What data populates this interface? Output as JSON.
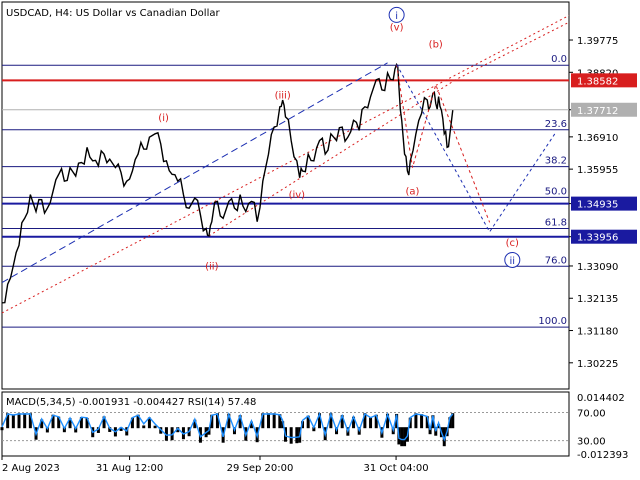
{
  "chart_data": {
    "type": "line",
    "title": "USDCAD, H4:  US Dollar vs Canadian Dollar",
    "price_axis": {
      "ylim": [
        1.2945,
        1.409
      ],
      "ticks": [
        "1.39775",
        "1.38820",
        "1.37712",
        "1.36910",
        "1.35955",
        "1.34935",
        "1.33956",
        "1.33090",
        "1.32135",
        "1.31180",
        "1.30225"
      ],
      "tick_values": [
        1.39775,
        1.3882,
        1.37712,
        1.3691,
        1.35955,
        1.34935,
        1.33956,
        1.3309,
        1.32135,
        1.3118,
        1.30225
      ]
    },
    "time_axis": {
      "ticks": [
        "2 Aug 2023",
        "31 Aug 12:00",
        "29 Sep 20:00",
        "31 Oct 04:00"
      ],
      "tick_positions": [
        0,
        0.225,
        0.455,
        0.695
      ]
    },
    "highlighted_levels": [
      {
        "label": "1.38582",
        "value": 1.38582,
        "color": "#d81e1e"
      },
      {
        "label": "1.37712",
        "value": 1.37712,
        "color": "#b0b0b0"
      },
      {
        "label": "1.34935",
        "value": 1.34935,
        "color": "#1a1aa0"
      },
      {
        "label": "1.33956",
        "value": 1.33956,
        "color": "#1a1aa0"
      }
    ],
    "fibonacci": [
      {
        "label": "0.0",
        "value": 1.3903
      },
      {
        "label": "23.6",
        "value": 1.3712
      },
      {
        "label": "38.2",
        "value": 1.3603
      },
      {
        "label": "50.0",
        "value": 1.3512
      },
      {
        "label": "61.8",
        "value": 1.342
      },
      {
        "label": "76.0",
        "value": 1.3308
      },
      {
        "label": "100.0",
        "value": 1.3128
      }
    ],
    "wave_labels": [
      {
        "text": "(i)",
        "color": "red",
        "x": 0.285,
        "value": 1.3738
      },
      {
        "text": "(ii)",
        "color": "red",
        "x": 0.37,
        "value": 1.3298
      },
      {
        "text": "(iii)",
        "color": "red",
        "x": 0.495,
        "value": 1.3805
      },
      {
        "text": "(iv)",
        "color": "red",
        "x": 0.52,
        "value": 1.351
      },
      {
        "text": "(v)",
        "color": "red",
        "x": 0.696,
        "value": 1.4005
      },
      {
        "text": "(a)",
        "color": "red",
        "x": 0.724,
        "value": 1.352
      },
      {
        "text": "(b)",
        "color": "red",
        "x": 0.765,
        "value": 1.3955
      },
      {
        "text": "(c)",
        "color": "red",
        "x": 0.9,
        "value": 1.3368
      },
      {
        "text": "i",
        "color": "blue",
        "x": 0.696,
        "value": 1.404
      },
      {
        "text": "ii",
        "color": "blue",
        "x": 0.9,
        "value": 1.3315
      }
    ],
    "price_series": [
      [
        0.0,
        1.32
      ],
      [
        0.01,
        1.3255
      ],
      [
        0.02,
        1.331
      ],
      [
        0.03,
        1.337
      ],
      [
        0.04,
        1.345
      ],
      [
        0.05,
        1.352
      ],
      [
        0.06,
        1.347
      ],
      [
        0.07,
        1.3505
      ],
      [
        0.08,
        1.348
      ],
      [
        0.09,
        1.353
      ],
      [
        0.1,
        1.358
      ],
      [
        0.11,
        1.356
      ],
      [
        0.12,
        1.36
      ],
      [
        0.13,
        1.3575
      ],
      [
        0.14,
        1.3615
      ],
      [
        0.15,
        1.366
      ],
      [
        0.16,
        1.362
      ],
      [
        0.17,
        1.3605
      ],
      [
        0.18,
        1.364
      ],
      [
        0.19,
        1.3625
      ],
      [
        0.2,
        1.36
      ],
      [
        0.21,
        1.3585
      ],
      [
        0.22,
        1.356
      ],
      [
        0.23,
        1.359
      ],
      [
        0.24,
        1.364
      ],
      [
        0.25,
        1.3655
      ],
      [
        0.26,
        1.369
      ],
      [
        0.27,
        1.37
      ],
      [
        0.28,
        1.367
      ],
      [
        0.29,
        1.362
      ],
      [
        0.3,
        1.358
      ],
      [
        0.31,
        1.356
      ],
      [
        0.32,
        1.352
      ],
      [
        0.33,
        1.348
      ],
      [
        0.34,
        1.351
      ],
      [
        0.35,
        1.346
      ],
      [
        0.36,
        1.342
      ],
      [
        0.365,
        1.3398
      ],
      [
        0.37,
        1.344
      ],
      [
        0.38,
        1.35
      ],
      [
        0.39,
        1.345
      ],
      [
        0.4,
        1.35
      ],
      [
        0.41,
        1.348
      ],
      [
        0.42,
        1.352
      ],
      [
        0.43,
        1.347
      ],
      [
        0.44,
        1.35
      ],
      [
        0.45,
        1.344
      ],
      [
        0.46,
        1.356
      ],
      [
        0.47,
        1.364
      ],
      [
        0.48,
        1.372
      ],
      [
        0.49,
        1.378
      ],
      [
        0.495,
        1.38
      ],
      [
        0.5,
        1.375
      ],
      [
        0.51,
        1.368
      ],
      [
        0.52,
        1.362
      ],
      [
        0.525,
        1.357
      ],
      [
        0.53,
        1.359
      ],
      [
        0.54,
        1.364
      ],
      [
        0.55,
        1.362
      ],
      [
        0.56,
        1.368
      ],
      [
        0.57,
        1.364
      ],
      [
        0.58,
        1.37
      ],
      [
        0.59,
        1.368
      ],
      [
        0.6,
        1.372
      ],
      [
        0.61,
        1.369
      ],
      [
        0.62,
        1.374
      ],
      [
        0.63,
        1.371
      ],
      [
        0.64,
        1.378
      ],
      [
        0.65,
        1.381
      ],
      [
        0.66,
        1.386
      ],
      [
        0.67,
        1.383
      ],
      [
        0.68,
        1.388
      ],
      [
        0.69,
        1.386
      ],
      [
        0.696,
        1.3905
      ],
      [
        0.7,
        1.384
      ],
      [
        0.705,
        1.374
      ],
      [
        0.71,
        1.364
      ],
      [
        0.715,
        1.359
      ],
      [
        0.72,
        1.362
      ],
      [
        0.73,
        1.37
      ],
      [
        0.74,
        1.376
      ],
      [
        0.75,
        1.38
      ],
      [
        0.755,
        1.378
      ],
      [
        0.76,
        1.382
      ],
      [
        0.765,
        1.379
      ],
      [
        0.77,
        1.381
      ],
      [
        0.775,
        1.377
      ],
      [
        0.78,
        1.37
      ],
      [
        0.785,
        1.366
      ],
      [
        0.79,
        1.37
      ],
      [
        0.795,
        1.377
      ]
    ],
    "forecast_paths": [
      {
        "color": "red",
        "points": [
          [
            0.696,
            1.3905
          ],
          [
            0.724,
            1.36
          ],
          [
            0.765,
            1.3845
          ],
          [
            0.86,
            1.3438
          ]
        ]
      },
      {
        "color": "blue",
        "points": [
          [
            0.696,
            1.3905
          ],
          [
            0.86,
            1.341
          ],
          [
            0.975,
            1.37
          ]
        ]
      }
    ],
    "channel_lines": [
      {
        "color": "blue",
        "style": "dashed",
        "points": [
          [
            0.0,
            1.326
          ],
          [
            0.68,
            1.391
          ]
        ]
      },
      {
        "color": "red",
        "style": "dotted",
        "points": [
          [
            0.0,
            1.317
          ],
          [
            1.0,
            1.405
          ]
        ]
      },
      {
        "color": "red",
        "style": "dotted",
        "points": [
          [
            0.365,
            1.3398
          ],
          [
            0.8,
            1.386
          ],
          [
            1.0,
            1.403
          ]
        ]
      }
    ],
    "indicator": {
      "label": "MACD(5,34,5) -0.001931 -0.004427 RSI(14) 57.48",
      "ticks": [
        "0.014402",
        "70.00",
        "30.00",
        "-0.012393"
      ],
      "tick_positions": [
        0.08,
        0.32,
        0.76,
        0.97
      ]
    }
  }
}
